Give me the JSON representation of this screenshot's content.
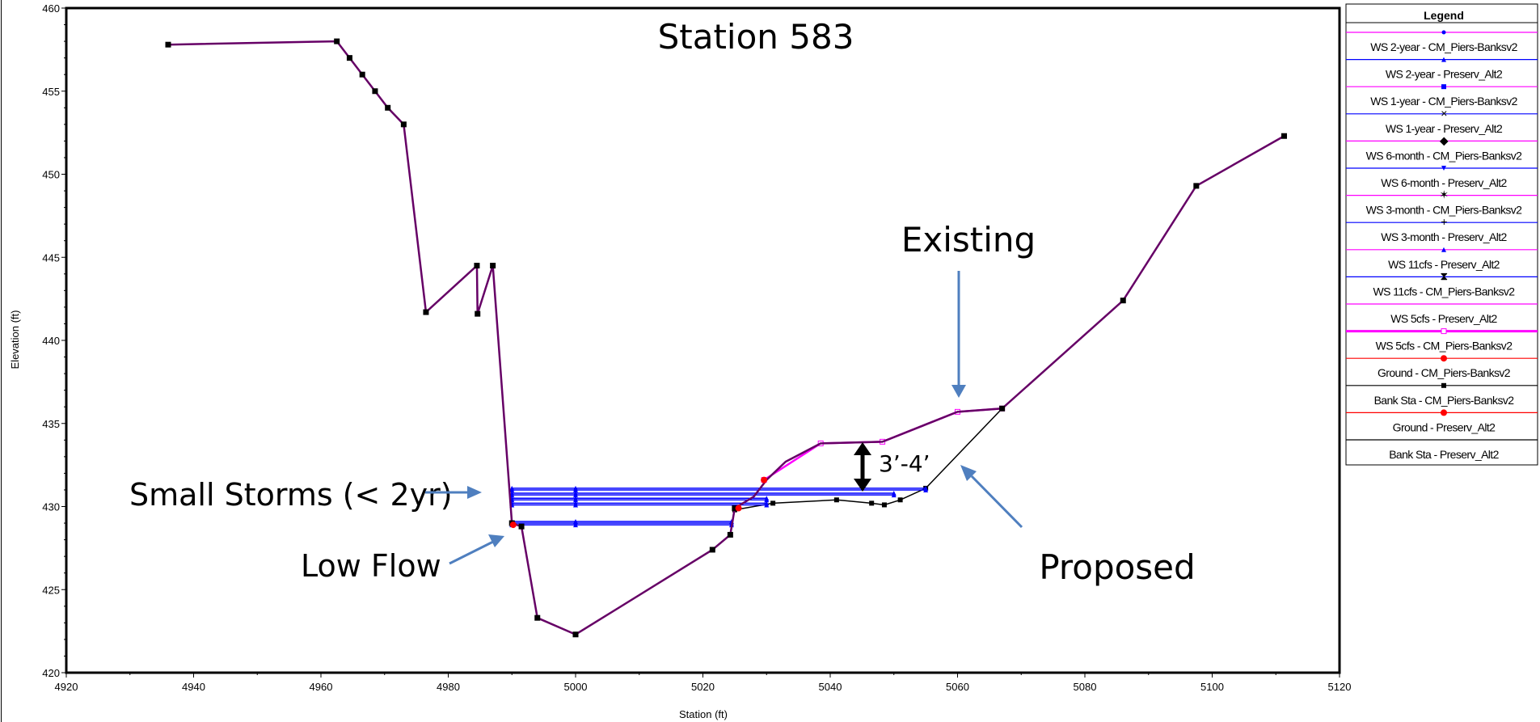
{
  "chart_data": {
    "type": "line",
    "title": "Station 583",
    "xlabel": "Station (ft)",
    "ylabel": "Elevation (ft)",
    "xlim": [
      4920,
      5120
    ],
    "ylim": [
      420,
      460
    ],
    "xticks": [
      4920,
      4940,
      4960,
      4980,
      5000,
      5020,
      5040,
      5060,
      5080,
      5100,
      5120
    ],
    "yticks": [
      420,
      425,
      430,
      435,
      440,
      445,
      450,
      455,
      460
    ],
    "grid": false,
    "legend_position": "right",
    "legend_title": "Legend",
    "colors": {
      "proposed": "#0000ff",
      "existing": "#ff00ff",
      "ground": "#660066",
      "bank": "#ff0000",
      "proposed_ground": "#000000",
      "annotation_arrow": "#4f7fbf"
    },
    "ground": {
      "x": [
        4936,
        4962.5,
        4964.5,
        4966.5,
        4968.5,
        4970.5,
        4973,
        4976.5,
        4984.5,
        4984.6,
        4987,
        4990,
        4991.5,
        4994,
        5000,
        5021.5,
        5024.3,
        5025,
        5028,
        5030,
        5033,
        5038.5,
        5048.2,
        5060,
        5067,
        5086,
        5097.5,
        5111.3
      ],
      "y": [
        457.8,
        458,
        457,
        456,
        455,
        454,
        453,
        441.7,
        444.5,
        441.6,
        444.5,
        429,
        428.8,
        423.3,
        422.3,
        427.4,
        428.3,
        429.9,
        430.6,
        431.6,
        432.7,
        433.8,
        433.9,
        435.7,
        435.9,
        442.4,
        449.3,
        452.3
      ]
    },
    "proposed_ground": {
      "x": [
        5025,
        5031,
        5041,
        5046.5,
        5048.5,
        5051,
        5055,
        5067
      ],
      "y": [
        429.8,
        430.2,
        430.4,
        430.2,
        430.1,
        430.4,
        431.1,
        435.9
      ]
    },
    "bank_stations": {
      "x": [
        4990.2,
        5025.6,
        5029.6
      ],
      "y": [
        428.9,
        429.9,
        431.6
      ]
    },
    "series": [
      {
        "name": "WS 2-year - CM_Piers-Banksv2",
        "x": [
          4990,
          5055
        ],
        "y": [
          431.1,
          431.1
        ]
      },
      {
        "name": "WS 2-year - Preserv_Alt2",
        "x": [
          4990,
          5055
        ],
        "y": [
          431.0,
          431.0
        ]
      },
      {
        "name": "WS 1-year - CM_Piers-Banksv2",
        "x": [
          4990,
          5050
        ],
        "y": [
          430.8,
          430.8
        ]
      },
      {
        "name": "WS 1-year - Preserv_Alt2",
        "x": [
          4990,
          5050
        ],
        "y": [
          430.7,
          430.7
        ]
      },
      {
        "name": "WS 6-month - CM_Piers-Banksv2",
        "x": [
          4990,
          5030
        ],
        "y": [
          430.5,
          430.5
        ]
      },
      {
        "name": "WS 6-month - Preserv_Alt2",
        "x": [
          4990,
          5030
        ],
        "y": [
          430.4,
          430.4
        ]
      },
      {
        "name": "WS 3-month - CM_Piers-Banksv2",
        "x": [
          4990,
          5030
        ],
        "y": [
          430.2,
          430.2
        ]
      },
      {
        "name": "WS 3-month - Preserv_Alt2",
        "x": [
          4990,
          5030
        ],
        "y": [
          430.1,
          430.1
        ]
      },
      {
        "name": "WS 11cfs - Preserv_Alt2",
        "x": [
          4990,
          5024.5
        ],
        "y": [
          429.1,
          429.1
        ]
      },
      {
        "name": "WS 11cfs - CM_Piers-Banksv2",
        "x": [
          4990,
          5024.5
        ],
        "y": [
          429.0,
          429.0
        ]
      },
      {
        "name": "WS 5cfs - Preserv_Alt2",
        "x": [
          4990,
          5024.5
        ],
        "y": [
          428.9,
          428.9
        ]
      },
      {
        "name": "WS 5cfs - CM_Piers-Banksv2",
        "x": [
          5029.6,
          5038.5,
          5048.2,
          5060,
          5067
        ],
        "y": [
          431.6,
          433.8,
          433.9,
          435.7,
          435.9
        ]
      }
    ],
    "legend": [
      {
        "label": "WS 2-year - CM_Piers-Banksv2",
        "color": "#ff00ff",
        "marker": "dot"
      },
      {
        "label": "WS 2-year - Preserv_Alt2",
        "color": "#0000ff",
        "marker": "triangle"
      },
      {
        "label": "WS 1-year - CM_Piers-Banksv2",
        "color": "#ff00ff",
        "marker": "square"
      },
      {
        "label": "WS 1-year - Preserv_Alt2",
        "color": "#0000ff",
        "marker": "x"
      },
      {
        "label": "WS 6-month - CM_Piers-Banksv2",
        "color": "#ff00ff",
        "marker": "diamond"
      },
      {
        "label": "WS 6-month - Preserv_Alt2",
        "color": "#0000ff",
        "marker": "triangle-down"
      },
      {
        "label": "WS 3-month - CM_Piers-Banksv2",
        "color": "#ff00ff",
        "marker": "star"
      },
      {
        "label": "WS 3-month - Preserv_Alt2",
        "color": "#0000ff",
        "marker": "plus"
      },
      {
        "label": "WS 11cfs - Preserv_Alt2",
        "color": "#ff00ff",
        "marker": "triangle"
      },
      {
        "label": "WS 11cfs - CM_Piers-Banksv2",
        "color": "#0000ff",
        "marker": "hourglass"
      },
      {
        "label": "WS 5cfs - Preserv_Alt2",
        "color": "#ff00ff",
        "marker": "none"
      },
      {
        "label": "WS 5cfs - CM_Piers-Banksv2",
        "color": "#ff00ff",
        "marker": "open-square"
      },
      {
        "label": "Ground - CM_Piers-Banksv2",
        "color": "#ff0000",
        "marker": "red-dot"
      },
      {
        "label": "Bank Sta - CM_Piers-Banksv2",
        "color": "#000000",
        "marker": "square"
      },
      {
        "label": "Ground - Preserv_Alt2",
        "color": "#ff0000",
        "marker": "red-dot"
      },
      {
        "label": "Bank Sta - Preserv_Alt2",
        "color": "#000000",
        "marker": "none"
      }
    ],
    "annotations": {
      "existing": "Existing",
      "proposed": "Proposed",
      "small_storms": "Small Storms (< 2yr)",
      "low_flow": "Low Flow",
      "difference": "3’-4’"
    }
  }
}
